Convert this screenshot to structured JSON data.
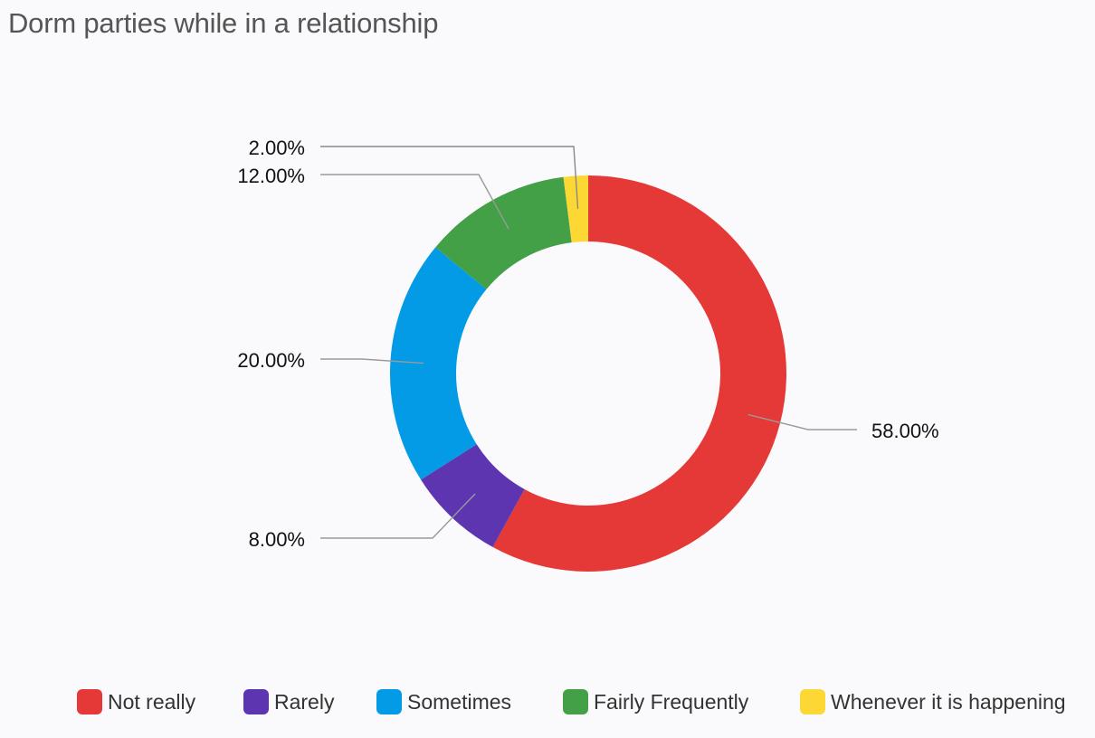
{
  "chart_data": {
    "type": "pie",
    "variant": "donut",
    "title": "Dorm parties while in a relationship",
    "categories": [
      "Not really",
      "Rarely",
      "Sometimes",
      "Fairly Frequently",
      "Whenever it is happening"
    ],
    "values": [
      58.0,
      8.0,
      20.0,
      12.0,
      2.0
    ],
    "value_labels": [
      "58.00%",
      "8.00%",
      "20.00%",
      "12.00%",
      "2.00%"
    ],
    "colors": [
      "#e43936",
      "#5e35b1",
      "#039be5",
      "#43a047",
      "#fdd835"
    ],
    "legend_position": "bottom"
  }
}
